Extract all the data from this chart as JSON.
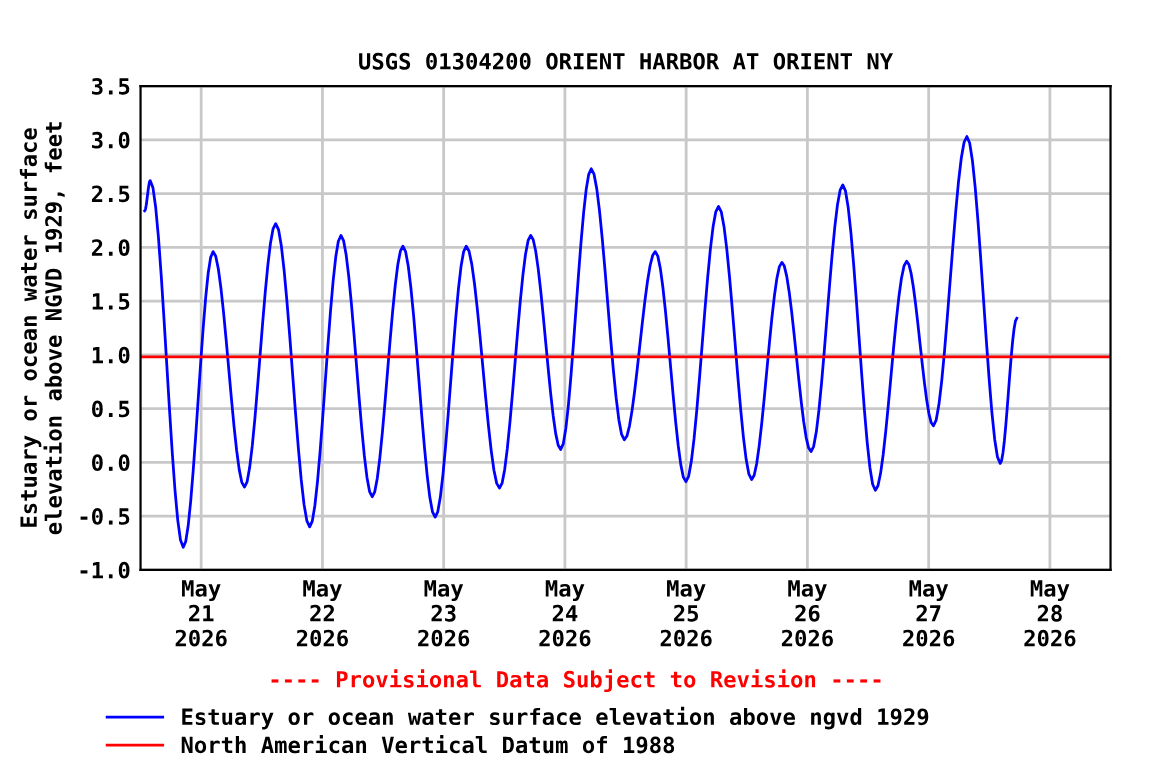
{
  "chart_data": {
    "type": "line",
    "title": "USGS 01304200 ORIENT HARBOR AT ORIENT NY",
    "ylabel": "Estuary or ocean water surface\nelevation above NGVD 1929, feet",
    "annotations": [
      "---- Provisional Data Subject to Revision ----"
    ],
    "x": [
      "2026-05-20T12:49",
      "2026-05-20T13:55",
      "2026-05-20T20:27",
      "2026-05-21T02:22",
      "2026-05-21T08:34",
      "2026-05-21T14:45",
      "2026-05-21T21:29",
      "2026-05-22T03:40",
      "2026-05-22T09:51",
      "2026-05-22T15:56",
      "2026-05-22T22:19",
      "2026-05-23T04:28",
      "2026-05-23T11:03",
      "2026-05-23T17:14",
      "2026-05-23T23:10",
      "2026-05-24T05:13",
      "2026-05-24T11:46",
      "2026-05-24T17:53",
      "2026-05-24T23:57",
      "2026-05-25T06:24",
      "2026-05-25T12:58",
      "2026-05-25T18:57",
      "2026-05-26T00:43",
      "2026-05-26T07:00",
      "2026-05-26T13:27",
      "2026-05-26T19:39",
      "2026-05-27T00:56",
      "2026-05-27T07:34",
      "2026-05-27T14:10",
      "2026-05-27T17:27"
    ],
    "series": [
      {
        "name": "Estuary or ocean water surface elevation above ngvd 1929",
        "color": "#0000ff",
        "values": [
          2.34,
          2.62,
          -0.79,
          1.96,
          -0.23,
          2.22,
          -0.6,
          2.11,
          -0.32,
          2.01,
          -0.51,
          2.01,
          -0.24,
          2.11,
          0.12,
          2.73,
          0.21,
          1.96,
          -0.18,
          2.38,
          -0.16,
          1.86,
          0.1,
          2.58,
          -0.26,
          1.87,
          0.34,
          3.03,
          -0.01,
          1.34
        ]
      }
    ],
    "ref_lines": [
      {
        "axis": "y",
        "value": 0.98,
        "label": "North American Vertical Datum of 1988",
        "color": "#ff0000"
      }
    ],
    "xlim": [
      "2026-05-20T12:00",
      "2026-05-28T12:00"
    ],
    "xticks": [
      {
        "value": "2026-05-21",
        "label": "May\n21\n2026"
      },
      {
        "value": "2026-05-22",
        "label": "May\n22\n2026"
      },
      {
        "value": "2026-05-23",
        "label": "May\n23\n2026"
      },
      {
        "value": "2026-05-24",
        "label": "May\n24\n2026"
      },
      {
        "value": "2026-05-25",
        "label": "May\n25\n2026"
      },
      {
        "value": "2026-05-26",
        "label": "May\n26\n2026"
      },
      {
        "value": "2026-05-27",
        "label": "May\n27\n2026"
      },
      {
        "value": "2026-05-28",
        "label": "May\n28\n2026"
      }
    ],
    "ylim": [
      -1.0,
      3.5
    ],
    "yticks": [
      {
        "value": -1.0,
        "label": "-1.0"
      },
      {
        "value": -0.5,
        "label": "-0.5"
      },
      {
        "value": 0.0,
        "label": "0.0"
      },
      {
        "value": 0.5,
        "label": "0.5"
      },
      {
        "value": 1.0,
        "label": "1.0"
      },
      {
        "value": 1.5,
        "label": "1.5"
      },
      {
        "value": 2.0,
        "label": "2.0"
      },
      {
        "value": 2.5,
        "label": "2.5"
      },
      {
        "value": 3.0,
        "label": "3.0"
      },
      {
        "value": 3.5,
        "label": "3.5"
      }
    ],
    "grid": true,
    "legend": "bottom"
  }
}
